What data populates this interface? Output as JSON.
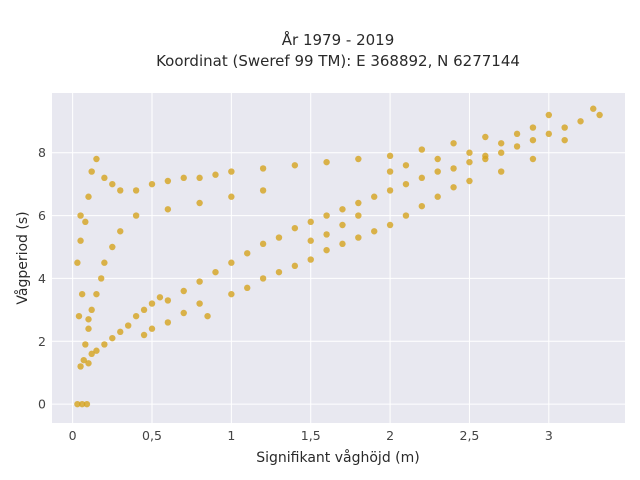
{
  "chart_data": {
    "type": "scatter",
    "title_lines": [
      "År 1979 - 2019",
      "Koordinat (Sweref 99 TM): E 368892, N 6277144"
    ],
    "xlabel": "Signifikant våghöjd (m)",
    "ylabel": "Vågperiod (s)",
    "xlim": [
      -0.13,
      3.48
    ],
    "ylim": [
      -0.6,
      9.9
    ],
    "x_ticks": [
      0,
      0.5,
      1,
      1.5,
      2,
      2.5,
      3
    ],
    "x_tick_labels": [
      "0",
      "0,5",
      "1",
      "1,5",
      "2",
      "2,5",
      "3"
    ],
    "y_ticks": [
      0,
      2,
      4,
      6,
      8
    ],
    "y_tick_labels": [
      "0",
      "2",
      "4",
      "6",
      "8"
    ],
    "grid": true,
    "marker_color": "#d4a21e",
    "background_color": "#e8e8f0",
    "series": [
      {
        "points": [
          [
            0.05,
            1.2
          ],
          [
            0.07,
            1.4
          ],
          [
            0.1,
            1.3
          ],
          [
            0.12,
            1.6
          ],
          [
            0.08,
            1.9
          ],
          [
            0.15,
            1.7
          ],
          [
            0.2,
            1.9
          ],
          [
            0.1,
            2.4
          ],
          [
            0.25,
            2.1
          ],
          [
            0.3,
            2.3
          ],
          [
            0.35,
            2.5
          ],
          [
            0.4,
            2.8
          ],
          [
            0.45,
            3.0
          ],
          [
            0.5,
            3.2
          ],
          [
            0.55,
            3.4
          ],
          [
            0.6,
            3.3
          ],
          [
            0.7,
            3.6
          ],
          [
            0.8,
            3.9
          ],
          [
            0.9,
            4.2
          ],
          [
            1.0,
            4.5
          ],
          [
            1.1,
            4.8
          ],
          [
            1.2,
            5.1
          ],
          [
            1.3,
            5.3
          ],
          [
            1.4,
            5.6
          ],
          [
            1.5,
            5.8
          ],
          [
            1.6,
            6.0
          ],
          [
            1.7,
            6.2
          ],
          [
            1.8,
            6.4
          ],
          [
            1.9,
            6.6
          ],
          [
            2.0,
            6.8
          ],
          [
            2.1,
            7.0
          ],
          [
            2.2,
            7.2
          ],
          [
            2.3,
            7.4
          ],
          [
            2.4,
            7.5
          ],
          [
            2.5,
            7.7
          ],
          [
            2.6,
            7.9
          ],
          [
            2.7,
            8.0
          ],
          [
            2.8,
            8.2
          ],
          [
            2.9,
            8.4
          ],
          [
            3.0,
            8.6
          ],
          [
            3.1,
            8.8
          ],
          [
            3.2,
            9.0
          ],
          [
            3.28,
            9.4
          ],
          [
            3.32,
            9.2
          ],
          [
            3.0,
            9.2
          ],
          [
            2.9,
            8.8
          ],
          [
            0.05,
            6.0
          ],
          [
            0.1,
            6.6
          ],
          [
            0.12,
            7.4
          ],
          [
            0.15,
            7.8
          ],
          [
            0.2,
            7.2
          ],
          [
            0.25,
            7.0
          ],
          [
            0.3,
            6.8
          ],
          [
            0.4,
            6.8
          ],
          [
            0.5,
            7.0
          ],
          [
            0.6,
            7.1
          ],
          [
            0.7,
            7.2
          ],
          [
            0.8,
            7.2
          ],
          [
            0.9,
            7.3
          ],
          [
            1.0,
            7.4
          ],
          [
            1.2,
            7.5
          ],
          [
            1.4,
            7.6
          ],
          [
            1.6,
            7.7
          ],
          [
            1.8,
            7.8
          ],
          [
            2.0,
            7.9
          ],
          [
            2.2,
            8.1
          ],
          [
            2.4,
            8.3
          ],
          [
            2.6,
            8.5
          ],
          [
            0.03,
            4.5
          ],
          [
            0.05,
            5.2
          ],
          [
            0.08,
            5.8
          ],
          [
            0.06,
            3.5
          ],
          [
            0.04,
            2.8
          ],
          [
            0.03,
            0.0
          ],
          [
            0.06,
            0.0
          ],
          [
            0.09,
            0.0
          ],
          [
            0.6,
            2.6
          ],
          [
            0.5,
            2.4
          ],
          [
            0.45,
            2.2
          ],
          [
            0.7,
            2.9
          ],
          [
            0.8,
            3.2
          ],
          [
            0.85,
            2.8
          ],
          [
            1.0,
            3.5
          ],
          [
            1.1,
            3.7
          ],
          [
            1.2,
            4.0
          ],
          [
            1.3,
            4.2
          ],
          [
            1.4,
            4.4
          ],
          [
            1.5,
            4.6
          ],
          [
            1.6,
            4.9
          ],
          [
            1.7,
            5.1
          ],
          [
            1.8,
            5.3
          ],
          [
            1.9,
            5.5
          ],
          [
            2.0,
            5.7
          ],
          [
            2.1,
            6.0
          ],
          [
            2.2,
            6.3
          ],
          [
            2.3,
            6.6
          ],
          [
            2.4,
            6.9
          ],
          [
            2.5,
            7.1
          ],
          [
            2.7,
            7.4
          ],
          [
            2.9,
            7.8
          ],
          [
            1.2,
            6.8
          ],
          [
            1.0,
            6.6
          ],
          [
            0.8,
            6.4
          ],
          [
            0.6,
            6.2
          ],
          [
            0.4,
            6.0
          ],
          [
            0.3,
            5.5
          ],
          [
            0.25,
            5.0
          ],
          [
            0.2,
            4.5
          ],
          [
            0.18,
            4.0
          ],
          [
            0.15,
            3.5
          ],
          [
            0.12,
            3.0
          ],
          [
            0.1,
            2.7
          ],
          [
            1.5,
            5.2
          ],
          [
            1.6,
            5.4
          ],
          [
            1.7,
            5.7
          ],
          [
            1.8,
            6.0
          ],
          [
            2.0,
            7.4
          ],
          [
            2.1,
            7.6
          ],
          [
            2.3,
            7.8
          ],
          [
            2.5,
            8.0
          ],
          [
            2.6,
            7.8
          ],
          [
            2.7,
            8.3
          ],
          [
            2.8,
            8.6
          ],
          [
            3.1,
            8.4
          ]
        ]
      }
    ]
  }
}
